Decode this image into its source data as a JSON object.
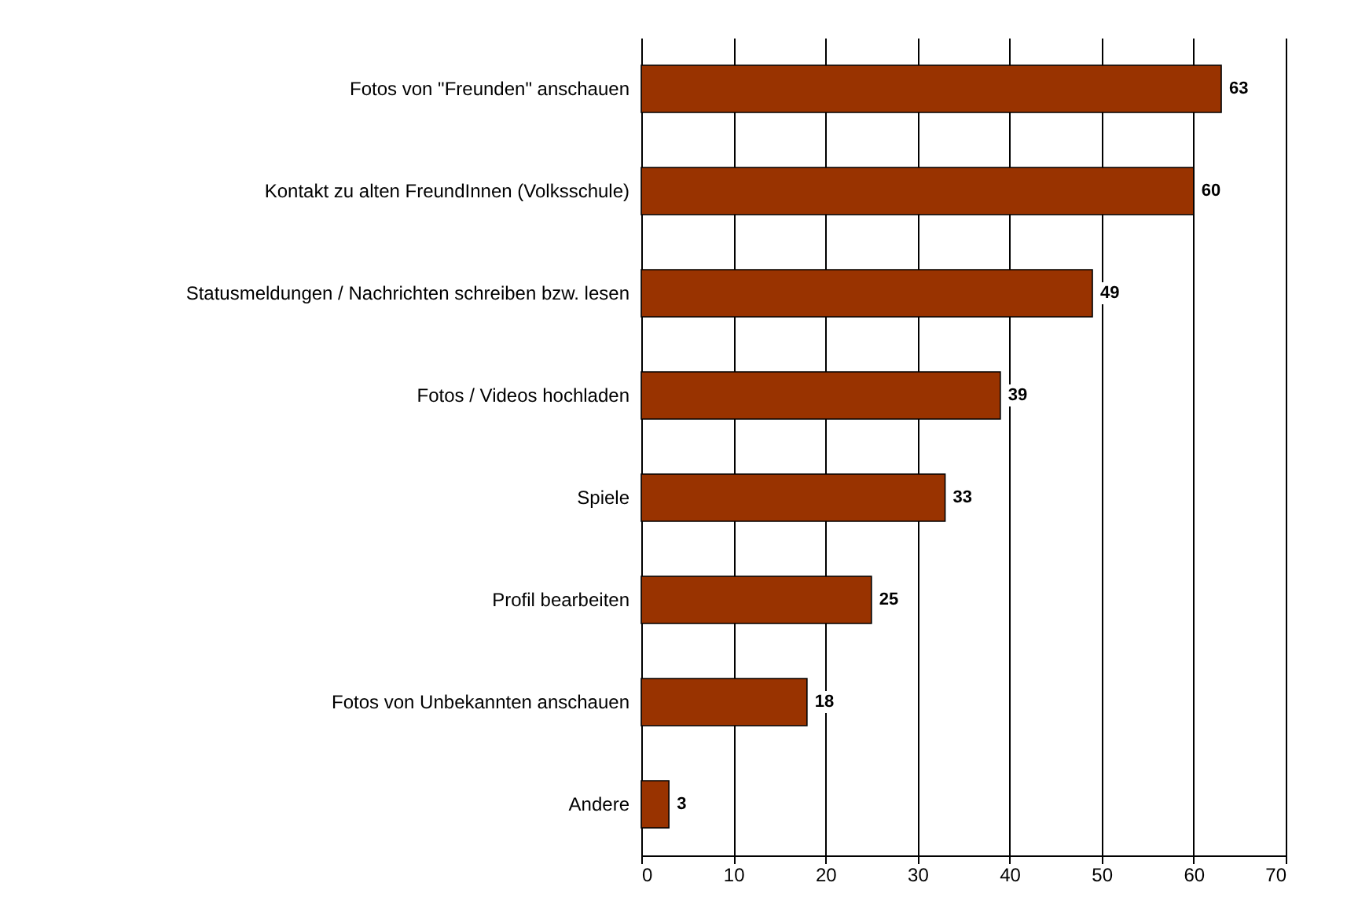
{
  "chart_data": {
    "type": "bar",
    "orientation": "horizontal",
    "categories": [
      "Fotos von \"Freunden\" anschauen",
      "Kontakt zu alten FreundInnen (Volksschule)",
      "Statusmeldungen / Nachrichten schreiben bzw. lesen",
      "Fotos / Videos hochladen",
      "Spiele",
      "Profil bearbeiten",
      "Fotos von Unbekannten anschauen",
      "Andere"
    ],
    "values": [
      63,
      60,
      49,
      39,
      33,
      25,
      18,
      3
    ],
    "color": "#993300",
    "xlim": [
      0,
      70
    ],
    "xticks": [
      0,
      10,
      20,
      30,
      40,
      50,
      60,
      70
    ],
    "grid": "x",
    "data_labels": true
  }
}
